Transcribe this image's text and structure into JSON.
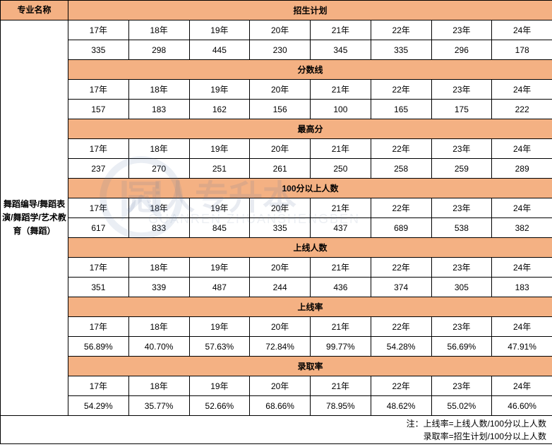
{
  "table": {
    "col1_header": "专业名称",
    "major_name": "舞蹈编导/舞蹈表演/舞蹈学/艺术教育（舞蹈）",
    "years": [
      "17年",
      "18年",
      "19年",
      "20年",
      "21年",
      "22年",
      "23年",
      "24年"
    ],
    "sections": [
      {
        "title": "招生计划",
        "values": [
          "335",
          "298",
          "445",
          "230",
          "345",
          "335",
          "296",
          "178"
        ]
      },
      {
        "title": "分数线",
        "values": [
          "157",
          "183",
          "162",
          "156",
          "100",
          "165",
          "175",
          "222"
        ]
      },
      {
        "title": "最高分",
        "values": [
          "237",
          "270",
          "251",
          "261",
          "250",
          "258",
          "259",
          "289"
        ]
      },
      {
        "title": "100分以上人数",
        "values": [
          "617",
          "833",
          "845",
          "335",
          "437",
          "689",
          "538",
          "382"
        ]
      },
      {
        "title": "上线人数",
        "values": [
          "351",
          "339",
          "487",
          "244",
          "436",
          "374",
          "305",
          "183"
        ]
      },
      {
        "title": "上线率",
        "values": [
          "56.89%",
          "40.70%",
          "57.63%",
          "72.84%",
          "99.77%",
          "54.28%",
          "56.69%",
          "47.91%"
        ]
      },
      {
        "title": "录取率",
        "values": [
          "54.29%",
          "35.77%",
          "52.66%",
          "68.66%",
          "78.95%",
          "48.62%",
          "55.02%",
          "46.60%"
        ]
      }
    ],
    "note_line1": "注：上线率=上线人数/100分以上人数",
    "note_line2": "录取率=招生计划/100分以上人数"
  },
  "watermark": {
    "main": "冠人专升本",
    "sub": "GUANREN ZHUANSHENGBEN"
  },
  "colors": {
    "header_bg": "#f4b183",
    "border": "#000000",
    "background": "#ffffff"
  }
}
